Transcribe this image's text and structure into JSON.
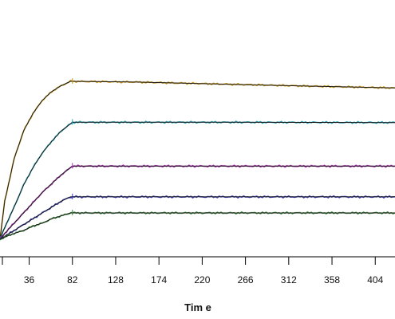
{
  "chart_data": {
    "type": "line",
    "title": "",
    "xlabel": "Tim e",
    "ylabel": "",
    "xlim": [
      5,
      425
    ],
    "ylim": [
      0,
      1.2
    ],
    "x_ticks": [
      36,
      82,
      128,
      174,
      220,
      266,
      312,
      358,
      404
    ],
    "grid": false,
    "legend": "none",
    "series": [
      {
        "color": "#c8961a",
        "values": [
          [
            5,
            0.0
          ],
          [
            10,
            0.26
          ],
          [
            20,
            0.55
          ],
          [
            30,
            0.74
          ],
          [
            40,
            0.86
          ],
          [
            50,
            0.95
          ],
          [
            60,
            1.01
          ],
          [
            70,
            1.05
          ],
          [
            80,
            1.08
          ],
          [
            82,
            1.08
          ],
          [
            150,
            1.075
          ],
          [
            250,
            1.06
          ],
          [
            350,
            1.045
          ],
          [
            425,
            1.035
          ]
        ]
      },
      {
        "color": "#2aa8b8",
        "values": [
          [
            5,
            0.0
          ],
          [
            10,
            0.08
          ],
          [
            20,
            0.22
          ],
          [
            30,
            0.37
          ],
          [
            40,
            0.49
          ],
          [
            50,
            0.59
          ],
          [
            60,
            0.67
          ],
          [
            70,
            0.74
          ],
          [
            80,
            0.79
          ],
          [
            82,
            0.8
          ],
          [
            150,
            0.8
          ],
          [
            250,
            0.8
          ],
          [
            350,
            0.799
          ],
          [
            425,
            0.798
          ]
        ]
      },
      {
        "color": "#b030b8",
        "values": [
          [
            5,
            0.0
          ],
          [
            10,
            0.04
          ],
          [
            20,
            0.11
          ],
          [
            30,
            0.18
          ],
          [
            40,
            0.25
          ],
          [
            50,
            0.32
          ],
          [
            60,
            0.38
          ],
          [
            70,
            0.44
          ],
          [
            80,
            0.49
          ],
          [
            82,
            0.5
          ],
          [
            150,
            0.5
          ],
          [
            250,
            0.5
          ],
          [
            350,
            0.5
          ],
          [
            425,
            0.5
          ]
        ]
      },
      {
        "color": "#3a3ab8",
        "values": [
          [
            5,
            0.0
          ],
          [
            10,
            0.02
          ],
          [
            20,
            0.06
          ],
          [
            30,
            0.1
          ],
          [
            40,
            0.14
          ],
          [
            50,
            0.18
          ],
          [
            60,
            0.22
          ],
          [
            70,
            0.26
          ],
          [
            80,
            0.29
          ],
          [
            82,
            0.29
          ],
          [
            150,
            0.29
          ],
          [
            250,
            0.29
          ],
          [
            350,
            0.29
          ],
          [
            425,
            0.29
          ]
        ]
      },
      {
        "color": "#3a8a3a",
        "values": [
          [
            5,
            0.0
          ],
          [
            10,
            0.015
          ],
          [
            20,
            0.04
          ],
          [
            30,
            0.06
          ],
          [
            40,
            0.09
          ],
          [
            50,
            0.11
          ],
          [
            60,
            0.14
          ],
          [
            70,
            0.16
          ],
          [
            80,
            0.18
          ],
          [
            82,
            0.18
          ],
          [
            150,
            0.18
          ],
          [
            250,
            0.18
          ],
          [
            350,
            0.18
          ],
          [
            425,
            0.18
          ]
        ]
      }
    ]
  }
}
